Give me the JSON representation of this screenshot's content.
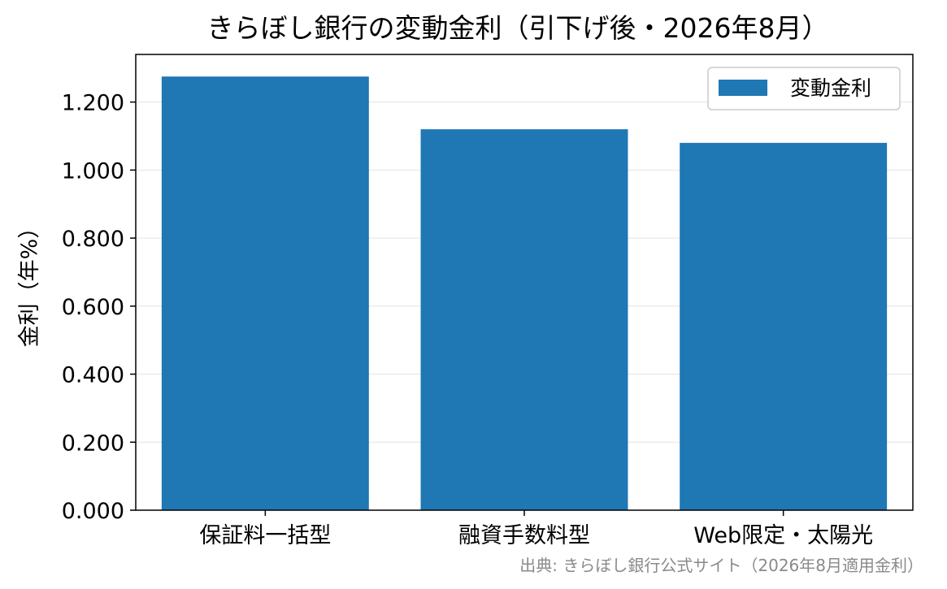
{
  "chart_data": {
    "type": "bar",
    "title": "きらぼし銀行の変動金利（引下げ後・2026年8月）",
    "xlabel": "",
    "ylabel": "金利（年%）",
    "categories": [
      "保証料一括型",
      "融資手数料型",
      "Web限定・太陽光"
    ],
    "series": [
      {
        "name": "変動金利",
        "values": [
          1.275,
          1.12,
          1.08
        ]
      }
    ],
    "ylim": [
      0,
      1.34
    ],
    "yticks": [
      "0.000",
      "0.200",
      "0.400",
      "0.600",
      "0.800",
      "1.000",
      "1.200"
    ],
    "grid": "horizontal",
    "legend_position": "top-right",
    "bar_color": "#1f77b4",
    "source": "出典: きらぼし銀行公式サイト（2026年8月適用金利）"
  }
}
